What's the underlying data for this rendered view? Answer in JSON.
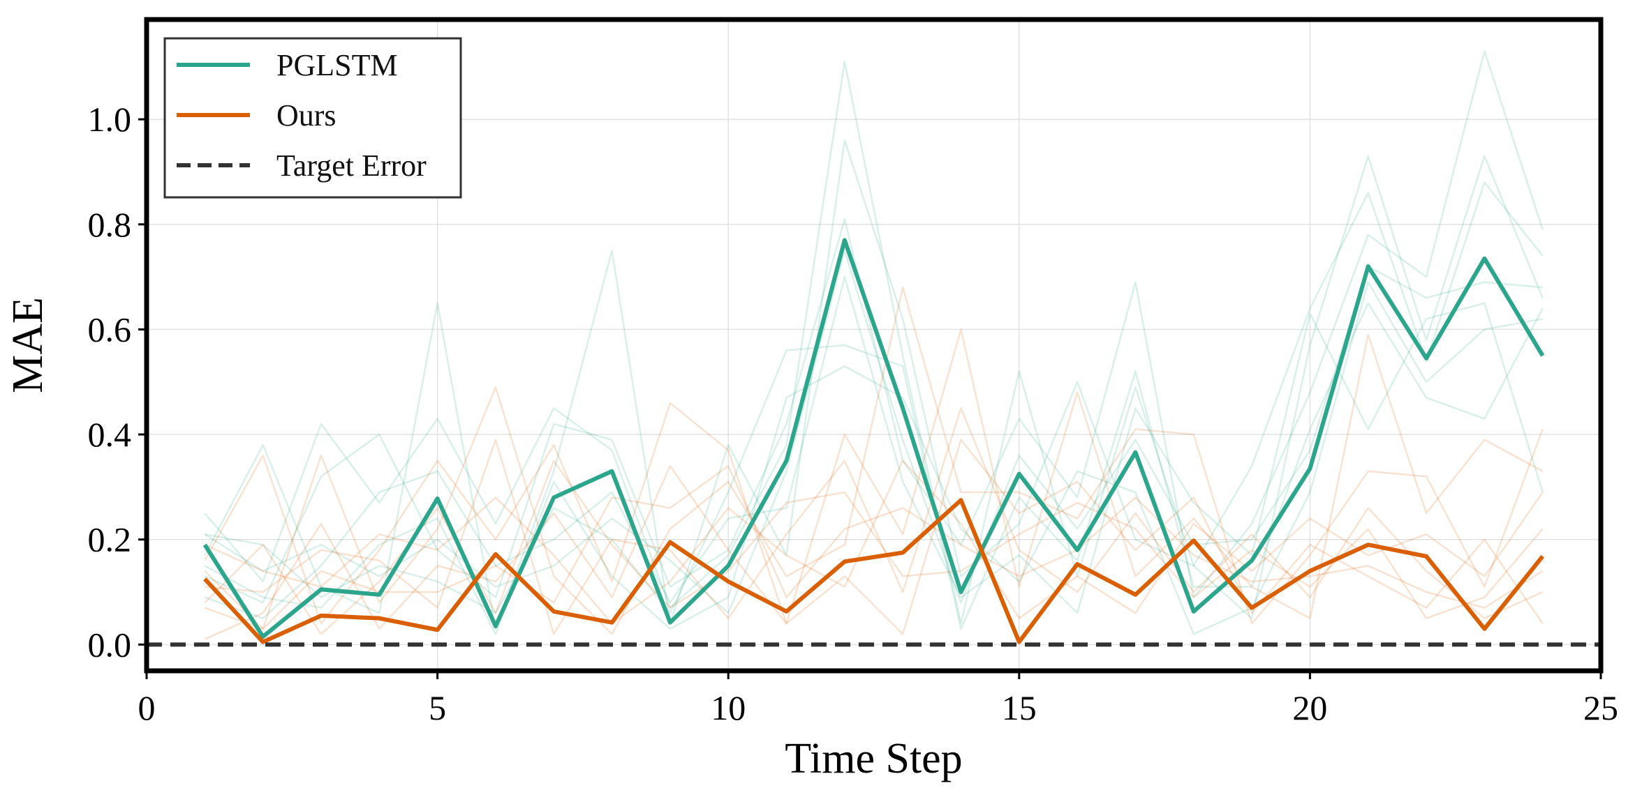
{
  "chart_data": {
    "type": "line",
    "title": "",
    "xlabel": "Time Step",
    "ylabel": "MAE",
    "xlim": [
      0,
      25
    ],
    "ylim": [
      -0.05,
      1.19
    ],
    "xticks": [
      0,
      5,
      10,
      15,
      20,
      25
    ],
    "yticks": [
      0.0,
      0.2,
      0.4,
      0.6,
      0.8,
      1.0
    ],
    "xtick_labels": [
      "0",
      "5",
      "10",
      "15",
      "20",
      "25"
    ],
    "ytick_labels": [
      "0.0",
      "0.2",
      "0.4",
      "0.6",
      "0.8",
      "1.0"
    ],
    "grid": true,
    "legend_position": "top-left",
    "x": [
      1,
      2,
      3,
      4,
      5,
      6,
      7,
      8,
      9,
      10,
      11,
      12,
      13,
      14,
      15,
      16,
      17,
      18,
      19,
      20,
      21,
      22,
      23,
      24
    ],
    "series": [
      {
        "name": "PGLSTM",
        "color": "#2ca58d",
        "values": [
          0.19,
          0.015,
          0.105,
          0.095,
          0.278,
          0.035,
          0.28,
          0.33,
          0.042,
          0.15,
          0.35,
          0.77,
          0.45,
          0.1,
          0.325,
          0.18,
          0.366,
          0.063,
          0.16,
          0.335,
          0.72,
          0.545,
          0.735,
          0.55
        ]
      },
      {
        "name": "Ours",
        "color": "#d95f02",
        "values": [
          0.125,
          0.005,
          0.055,
          0.05,
          0.028,
          0.172,
          0.063,
          0.042,
          0.195,
          0.12,
          0.063,
          0.158,
          0.175,
          0.275,
          0.005,
          0.153,
          0.095,
          0.198,
          0.07,
          0.14,
          0.19,
          0.168,
          0.03,
          0.168
        ]
      },
      {
        "name": "Target Error",
        "color": "#333333",
        "style": "dashed",
        "constant": 0.0
      }
    ],
    "background_series": {
      "PGLSTM": [
        [
          0.25,
          0.12,
          0.42,
          0.27,
          0.43,
          0.23,
          0.45,
          0.37,
          0.07,
          0.17,
          0.38,
          1.11,
          0.55,
          0.04,
          0.52,
          0.13,
          0.49,
          0.15,
          0.05,
          0.57,
          0.93,
          0.58,
          0.93,
          0.66
        ],
        [
          0.17,
          0.38,
          0.11,
          0.06,
          0.65,
          0.03,
          0.33,
          0.75,
          0.04,
          0.38,
          0.17,
          0.96,
          0.62,
          0.13,
          0.23,
          0.5,
          0.2,
          0.15,
          0.34,
          0.64,
          0.86,
          0.54,
          0.88,
          0.74
        ],
        [
          0.13,
          0.08,
          0.32,
          0.4,
          0.18,
          0.09,
          0.42,
          0.39,
          0.11,
          0.18,
          0.42,
          0.81,
          0.35,
          0.19,
          0.43,
          0.28,
          0.69,
          0.09,
          0.23,
          0.48,
          0.78,
          0.7,
          1.13,
          0.79
        ],
        [
          0.21,
          0.19,
          0.09,
          0.15,
          0.12,
          0.06,
          0.26,
          0.2,
          0.06,
          0.29,
          0.56,
          0.57,
          0.53,
          0.03,
          0.28,
          0.16,
          0.52,
          0.11,
          0.11,
          0.41,
          0.65,
          0.47,
          0.43,
          0.64
        ],
        [
          0.09,
          0.05,
          0.15,
          0.29,
          0.33,
          0.15,
          0.2,
          0.29,
          0.08,
          0.24,
          0.26,
          0.7,
          0.31,
          0.09,
          0.17,
          0.06,
          0.45,
          0.27,
          0.17,
          0.63,
          0.41,
          0.62,
          0.65,
          0.29
        ],
        [
          0.15,
          0.09,
          0.07,
          0.19,
          0.24,
          0.02,
          0.31,
          0.13,
          0.03,
          0.09,
          0.47,
          0.53,
          0.47,
          0.22,
          0.12,
          0.33,
          0.29,
          0.02,
          0.07,
          0.29,
          0.69,
          0.5,
          0.6,
          0.62
        ],
        [
          0.21,
          0.14,
          0.19,
          0.13,
          0.2,
          0.11,
          0.15,
          0.24,
          0.16,
          0.06,
          0.33,
          0.75,
          0.39,
          0.08,
          0.36,
          0.22,
          0.39,
          0.19,
          0.2,
          0.37,
          0.72,
          0.66,
          0.69,
          0.68
        ]
      ],
      "Ours": [
        [
          0.16,
          0.36,
          0.04,
          0.18,
          0.35,
          0.2,
          0.38,
          0.12,
          0.46,
          0.37,
          0.04,
          0.4,
          0.21,
          0.6,
          0.11,
          0.48,
          0.13,
          0.24,
          0.11,
          0.05,
          0.59,
          0.25,
          0.39,
          0.33
        ],
        [
          0.07,
          0.03,
          0.36,
          0.08,
          0.22,
          0.49,
          0.13,
          0.02,
          0.22,
          0.31,
          0.13,
          0.19,
          0.68,
          0.29,
          0.29,
          0.24,
          0.41,
          0.4,
          0.04,
          0.17,
          0.33,
          0.32,
          0.11,
          0.41
        ],
        [
          0.11,
          0.1,
          0.18,
          0.16,
          0.07,
          0.39,
          0.02,
          0.2,
          0.18,
          0.05,
          0.21,
          0.35,
          0.1,
          0.45,
          0.18,
          0.1,
          0.25,
          0.1,
          0.21,
          0.09,
          0.26,
          0.14,
          0.05,
          0.1
        ],
        [
          0.01,
          0.06,
          0.23,
          0.03,
          0.15,
          0.12,
          0.25,
          0.09,
          0.34,
          0.18,
          0.04,
          0.13,
          0.02,
          0.39,
          0.25,
          0.31,
          0.18,
          0.28,
          0.06,
          0.19,
          0.13,
          0.07,
          0.2,
          0.04
        ],
        [
          0.19,
          0.14,
          0.11,
          0.21,
          0.18,
          0.28,
          0.17,
          0.04,
          0.12,
          0.26,
          0.17,
          0.11,
          0.35,
          0.23,
          0.05,
          0.13,
          0.06,
          0.23,
          0.14,
          0.24,
          0.17,
          0.21,
          0.13,
          0.29
        ],
        [
          0.08,
          0.19,
          0.02,
          0.12,
          0.26,
          0.06,
          0.35,
          0.19,
          0.07,
          0.14,
          0.27,
          0.29,
          0.13,
          0.14,
          0.21,
          0.27,
          0.22,
          0.09,
          0.18,
          0.11,
          0.22,
          0.05,
          0.09,
          0.22
        ],
        [
          0.14,
          0.03,
          0.14,
          0.1,
          0.1,
          0.15,
          0.08,
          0.28,
          0.26,
          0.34,
          0.09,
          0.22,
          0.26,
          0.19,
          0.13,
          0.18,
          0.28,
          0.17,
          0.12,
          0.13,
          0.15,
          0.1,
          0.07,
          0.14
        ]
      ]
    }
  }
}
